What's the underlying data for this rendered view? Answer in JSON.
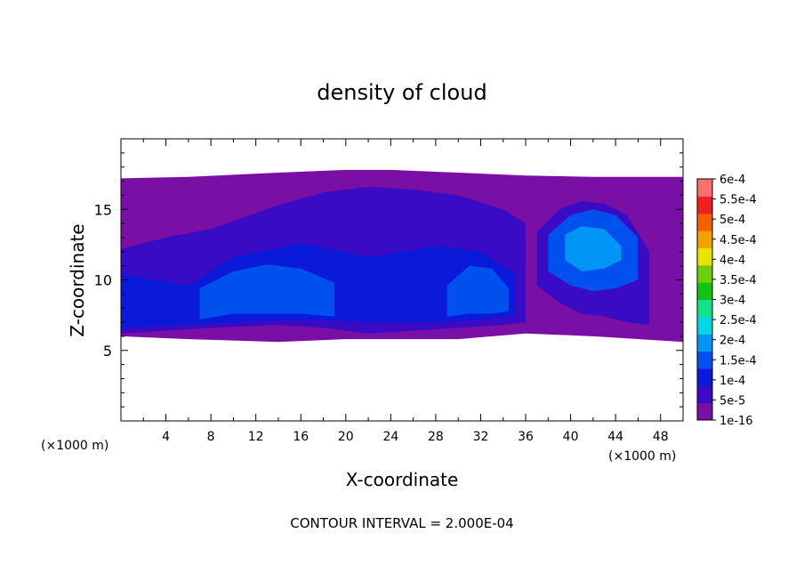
{
  "chart_data": {
    "type": "heatmap",
    "title": "density of cloud",
    "xlabel": "X-coordinate",
    "ylabel": "Z-coordinate",
    "x_unit": "(×1000 m)",
    "y_unit": "(×1000 m)",
    "xlim": [
      0,
      50
    ],
    "ylim": [
      0,
      20
    ],
    "x_ticks": [
      4,
      8,
      12,
      16,
      20,
      24,
      28,
      32,
      36,
      40,
      44,
      48
    ],
    "y_ticks": [
      5,
      10,
      15
    ],
    "footer": "CONTOUR INTERVAL = 2.000E-04",
    "colorbar": {
      "labels": [
        "1e-16",
        "5e-5",
        "1e-4",
        "1.5e-4",
        "2e-4",
        "2.5e-4",
        "3e-4",
        "3.5e-4",
        "4e-4",
        "4.5e-4",
        "5e-4",
        "5.5e-4",
        "6e-4"
      ],
      "colors": [
        "#7a0fa6",
        "#3a0bc4",
        "#0a1ad8",
        "#0050ee",
        "#0094f4",
        "#00d8e6",
        "#16e08a",
        "#14c010",
        "#6ed00c",
        "#e8e400",
        "#f2a000",
        "#f26000",
        "#f02020",
        "#f87070"
      ]
    },
    "regions": [
      {
        "name": "haze-layer",
        "level": 0,
        "x": [
          0,
          6,
          14,
          20,
          24,
          30,
          36,
          42,
          50
        ],
        "top": [
          17.2,
          17.3,
          17.6,
          17.8,
          17.8,
          17.6,
          17.4,
          17.3,
          17.3
        ],
        "bottom": [
          6.0,
          5.8,
          5.6,
          5.8,
          5.8,
          5.8,
          6.2,
          6.0,
          5.6
        ]
      },
      {
        "name": "main-cloud-outer",
        "level": 1,
        "x": [
          0,
          4,
          8,
          14,
          18,
          22,
          26,
          30,
          34,
          36
        ],
        "top": [
          12.2,
          13.0,
          13.6,
          15.3,
          16.2,
          16.6,
          16.4,
          16.0,
          15.0,
          14.0
        ],
        "bottom": [
          6.2,
          6.4,
          6.6,
          6.8,
          6.6,
          6.2,
          6.4,
          6.6,
          6.8,
          7.0
        ]
      },
      {
        "name": "main-cloud-inner",
        "level": 2,
        "x": [
          0,
          6,
          10,
          16,
          22,
          28,
          32,
          35
        ],
        "top": [
          10.4,
          9.6,
          11.6,
          12.6,
          11.6,
          12.4,
          12.0,
          10.4
        ],
        "bottom": [
          6.6,
          6.8,
          7.0,
          7.2,
          7.0,
          7.0,
          7.2,
          7.4
        ]
      },
      {
        "name": "left-lobe",
        "level": 3,
        "x": [
          7,
          10,
          13,
          16,
          19
        ],
        "top": [
          9.4,
          10.6,
          11.1,
          10.8,
          9.8
        ],
        "bottom": [
          7.2,
          7.6,
          7.6,
          7.6,
          7.4
        ]
      },
      {
        "name": "middle-lobe",
        "level": 3,
        "x": [
          29,
          31,
          33,
          34.5
        ],
        "top": [
          9.6,
          11.0,
          10.8,
          9.4
        ],
        "bottom": [
          7.4,
          7.6,
          7.6,
          7.8
        ]
      },
      {
        "name": "right-cloud-outer",
        "level": 1,
        "x": [
          37,
          39,
          41,
          43,
          45,
          47
        ],
        "top": [
          13.4,
          15.0,
          15.6,
          15.4,
          14.6,
          12.0
        ],
        "bottom": [
          9.6,
          8.4,
          7.6,
          7.4,
          7.0,
          6.8
        ]
      },
      {
        "name": "right-cloud-inner",
        "level": 3,
        "x": [
          38,
          40,
          42,
          44,
          46
        ],
        "top": [
          13.2,
          14.6,
          15.0,
          14.6,
          13.0
        ],
        "bottom": [
          10.6,
          9.6,
          9.2,
          9.4,
          10.0
        ]
      },
      {
        "name": "right-cloud-core",
        "level": 4,
        "x": [
          39.5,
          41,
          43,
          44.5
        ],
        "top": [
          13.2,
          13.8,
          13.6,
          12.4
        ],
        "bottom": [
          11.4,
          10.6,
          10.8,
          11.4
        ]
      }
    ]
  }
}
